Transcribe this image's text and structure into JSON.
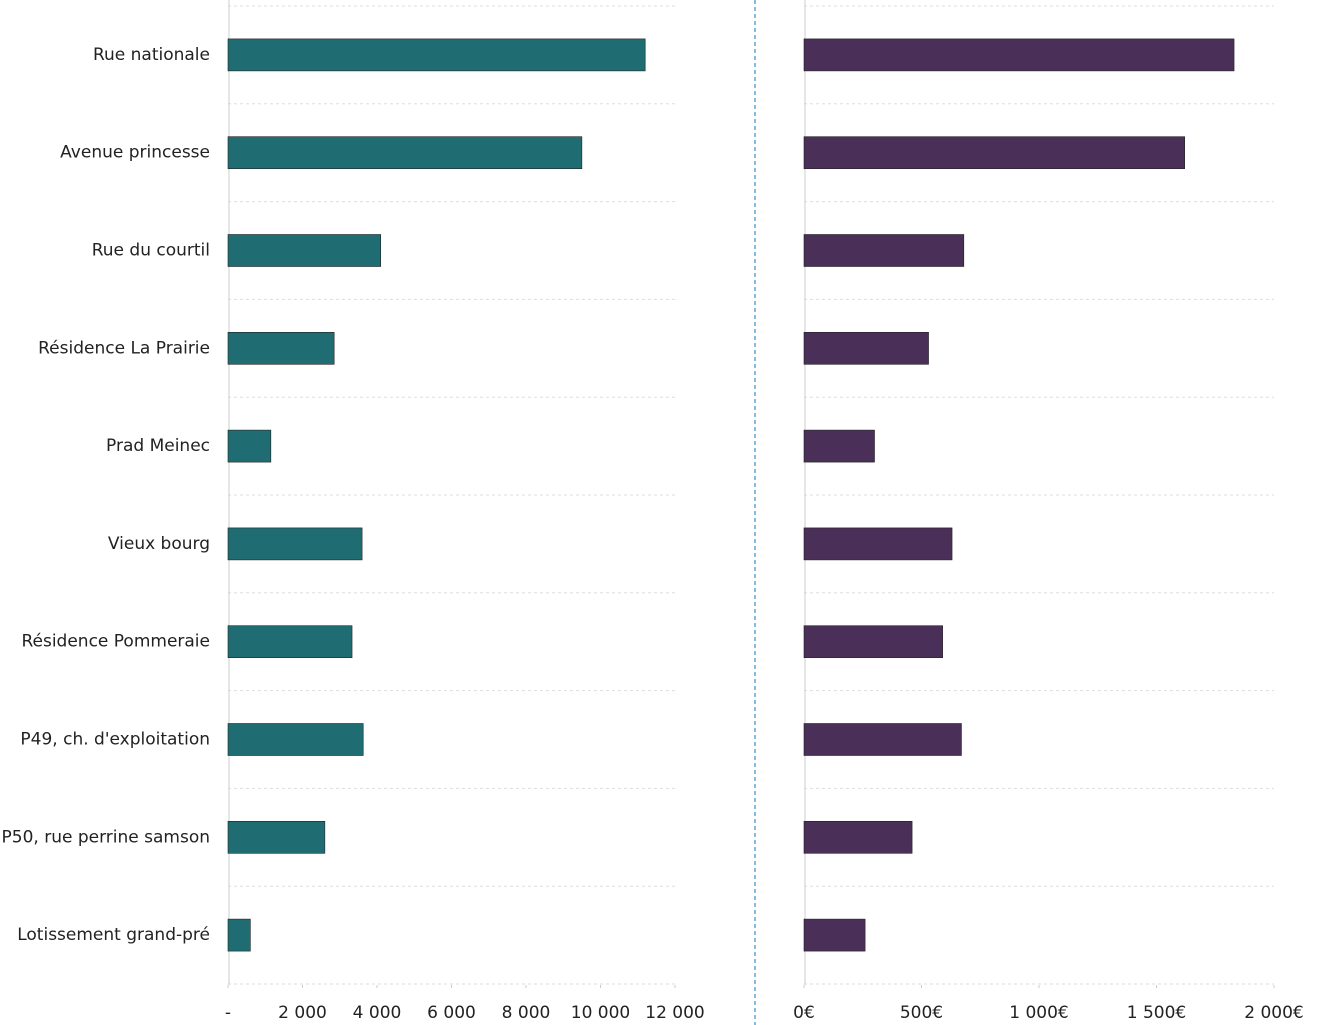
{
  "chart_data": [
    {
      "type": "bar",
      "orientation": "horizontal",
      "categories": [
        "Rue nationale",
        "Avenue princesse",
        "Rue du courtil",
        "Résidence La Prairie",
        "Prad Meinec",
        "Vieux bourg",
        "Résidence Pommeraie",
        "P49, ch. d'exploitation",
        "P50, rue perrine samson",
        "Lotissement grand-pré"
      ],
      "values": [
        11200,
        9500,
        4100,
        2850,
        1150,
        3600,
        3330,
        3630,
        2600,
        600
      ],
      "color": "#1f6d72",
      "xlim": [
        0,
        12000
      ],
      "xticks": [
        {
          "value": 0,
          "label": "-"
        },
        {
          "value": 2000,
          "label": "2 000"
        },
        {
          "value": 4000,
          "label": "4 000"
        },
        {
          "value": 6000,
          "label": "6 000"
        },
        {
          "value": 8000,
          "label": "8 000"
        },
        {
          "value": 10000,
          "label": "10 000"
        },
        {
          "value": 12000,
          "label": "12 000"
        }
      ],
      "grid": true
    },
    {
      "type": "bar",
      "orientation": "horizontal",
      "values": [
        1830,
        1620,
        680,
        530,
        300,
        630,
        590,
        670,
        460,
        260
      ],
      "color": "#4a2f58",
      "xlim": [
        0,
        2000
      ],
      "xticks": [
        {
          "value": 0,
          "label": "0€"
        },
        {
          "value": 500,
          "label": "500€"
        },
        {
          "value": 1000,
          "label": "1 000€"
        },
        {
          "value": 1500,
          "label": "1 500€"
        },
        {
          "value": 2000,
          "label": "2 000€"
        }
      ],
      "grid": true
    }
  ]
}
